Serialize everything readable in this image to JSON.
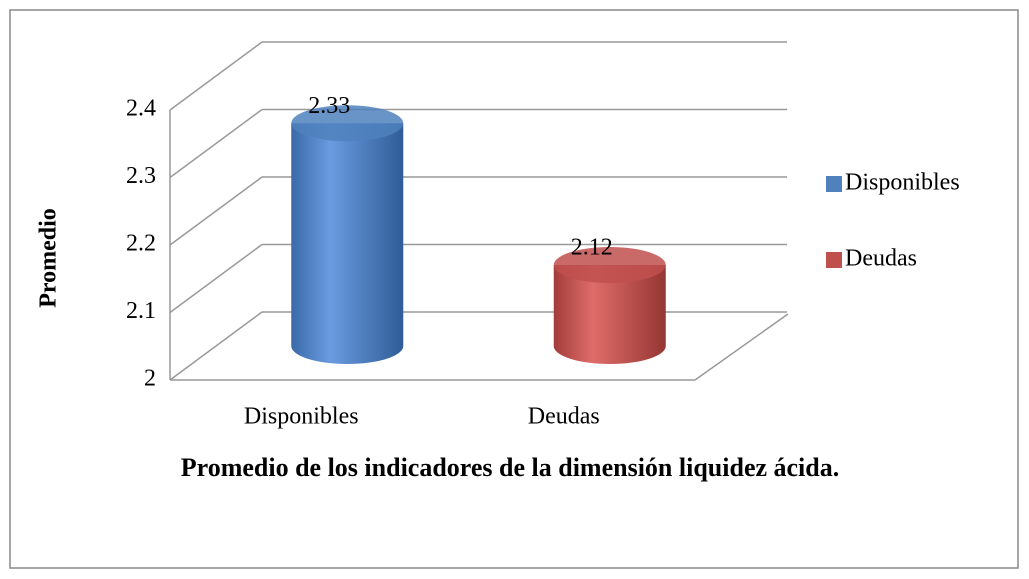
{
  "chart_data": {
    "type": "bar",
    "title": "Promedio de los indicadores de la dimensión liquidez ácida.",
    "y_label": "Promedio",
    "categories": [
      "Disponibles",
      "Deudas"
    ],
    "values": [
      2.33,
      2.12
    ],
    "colors": [
      "#4f81bd",
      "#c0504d"
    ],
    "ylim": [
      2,
      2.4
    ],
    "yticks": [
      2,
      2.1,
      2.2,
      2.3,
      2.4
    ],
    "grid": true,
    "legend": "right"
  }
}
